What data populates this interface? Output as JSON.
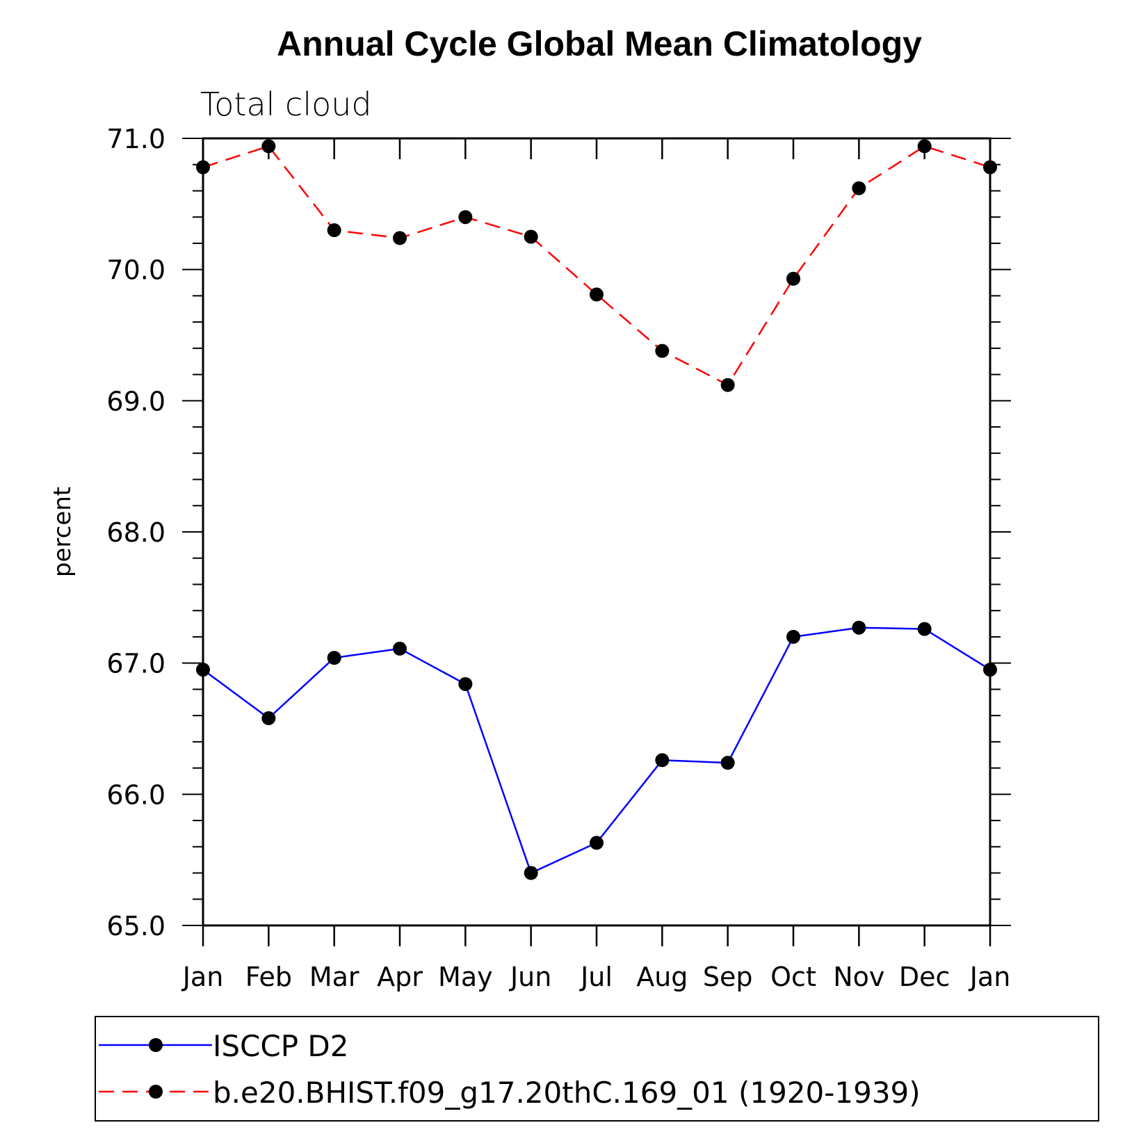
{
  "chart_data": {
    "type": "line",
    "title": "Annual Cycle Global Mean Climatology",
    "subtitle": "Total cloud",
    "ylabel": "percent",
    "xlabel": "",
    "categories": [
      "Jan",
      "Feb",
      "Mar",
      "Apr",
      "May",
      "Jun",
      "Jul",
      "Aug",
      "Sep",
      "Oct",
      "Nov",
      "Dec",
      "Jan"
    ],
    "ylim": [
      65.0,
      71.0
    ],
    "yticks": [
      "65.0",
      "66.0",
      "67.0",
      "68.0",
      "69.0",
      "70.0",
      "71.0"
    ],
    "grid": false,
    "legend_position": "bottom",
    "series": [
      {
        "name": "ISCCP D2",
        "color": "#0000ff",
        "line_style": "solid",
        "marker": "filled-circle",
        "values": [
          66.95,
          66.58,
          67.04,
          67.11,
          66.84,
          65.4,
          65.63,
          66.26,
          66.24,
          67.2,
          67.27,
          67.26,
          66.95
        ]
      },
      {
        "name": "b.e20.BHIST.f09_g17.20thC.169_01 (1920-1939)",
        "color": "#ff0000",
        "line_style": "dashed",
        "marker": "filled-circle",
        "values": [
          70.78,
          70.94,
          70.3,
          70.24,
          70.4,
          70.25,
          69.81,
          69.38,
          69.12,
          69.93,
          70.62,
          70.94,
          70.78
        ]
      }
    ]
  }
}
